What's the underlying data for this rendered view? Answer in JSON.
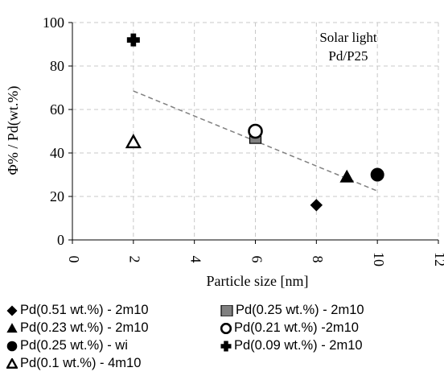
{
  "chart_data": {
    "type": "scatter",
    "xlabel": "Particle size [nm]",
    "ylabel": "Φ% / Pd(wt.%)",
    "xlim": [
      0,
      12
    ],
    "ylim": [
      0,
      100
    ],
    "xticks": [
      0,
      2,
      4,
      6,
      8,
      10,
      12
    ],
    "yticks": [
      0,
      20,
      40,
      60,
      80,
      100
    ],
    "grid": true,
    "annotation": [
      "Solar light",
      "Pd/P25"
    ],
    "series": [
      {
        "name": "Pd(0.51 wt.%) - 2m10",
        "marker": "diamond",
        "fill": true,
        "x": [
          8
        ],
        "y": [
          16
        ]
      },
      {
        "name": "Pd(0.25 wt.%) - 2m10",
        "marker": "square",
        "fill": true,
        "color": "#808080",
        "x": [
          6
        ],
        "y": [
          47
        ]
      },
      {
        "name": "Pd(0.23 wt.%) - 2m10",
        "marker": "triangle",
        "fill": true,
        "x": [
          9
        ],
        "y": [
          29
        ]
      },
      {
        "name": "Pd(0.21 wt.%) -2m10",
        "marker": "circle",
        "fill": false,
        "x": [
          6
        ],
        "y": [
          50
        ]
      },
      {
        "name": "Pd(0.25 wt.%) - wi",
        "marker": "circle",
        "fill": true,
        "x": [
          10
        ],
        "y": [
          30
        ]
      },
      {
        "name": "Pd(0.09 wt.%) - 2m10",
        "marker": "plus",
        "fill": true,
        "x": [
          2
        ],
        "y": [
          92
        ]
      },
      {
        "name": "Pd(0.1 wt.%) - 4m10",
        "marker": "triangle",
        "fill": false,
        "x": [
          2
        ],
        "y": [
          45
        ]
      }
    ],
    "trendline": {
      "style": "dashed",
      "color": "#808080",
      "x": [
        2,
        10
      ],
      "y": [
        68.5,
        22.5
      ]
    },
    "legend_position": "bottom"
  }
}
